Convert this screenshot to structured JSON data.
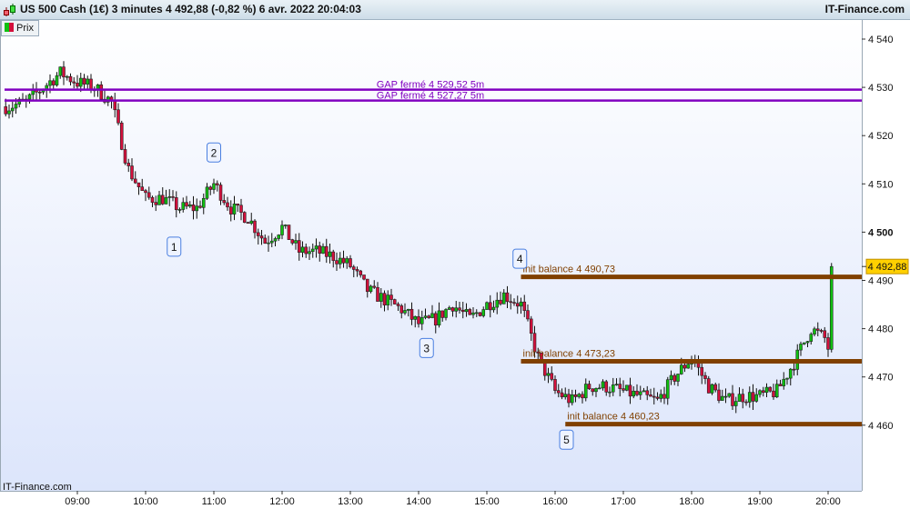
{
  "header": {
    "title": "US 500 Cash (1€) 3 minutes 4 492,88 (-0,82 %) 6 avr. 2022 20:04:03",
    "brand": "IT-Finance.com",
    "series_button": "Prix",
    "logo_icon": "candlestick-icon"
  },
  "footer": {
    "watermark": "IT-Finance.com"
  },
  "colors": {
    "up": "#10c010",
    "down": "#d4103c",
    "gap_line": "#8000c0",
    "balance_line": "#804000",
    "price_tag": "#ffd000",
    "bg_top": "#ffffff",
    "bg_bottom": "#dce5fb"
  },
  "chart_data": {
    "type": "candlestick",
    "interval": "3 minutes",
    "ylim": [
      4450,
      4544
    ],
    "yticks": [
      {
        "v": 4540,
        "label": "4 540"
      },
      {
        "v": 4530,
        "label": "4 530"
      },
      {
        "v": 4520,
        "label": "4 520"
      },
      {
        "v": 4510,
        "label": "4 510"
      },
      {
        "v": 4500,
        "label": "4 500",
        "bold": true
      },
      {
        "v": 4490,
        "label": "4 490"
      },
      {
        "v": 4480,
        "label": "4 480"
      },
      {
        "v": 4470,
        "label": "4 470"
      },
      {
        "v": 4460,
        "label": "4 460"
      }
    ],
    "xticks": [
      "09:00",
      "10:00",
      "11:00",
      "12:00",
      "13:00",
      "14:00",
      "15:00",
      "16:00",
      "17:00",
      "18:00",
      "19:00",
      "20:00"
    ],
    "xrange": [
      "07:56",
      "20:30"
    ],
    "close_path": {
      "times": [
        "08:00",
        "08:15",
        "08:30",
        "08:45",
        "09:00",
        "09:15",
        "09:30",
        "09:45",
        "10:00",
        "10:15",
        "10:30",
        "10:45",
        "11:00",
        "11:15",
        "11:30",
        "11:45",
        "12:00",
        "12:15",
        "12:30",
        "12:45",
        "13:00",
        "13:15",
        "13:30",
        "13:45",
        "14:00",
        "14:15",
        "14:30",
        "14:45",
        "15:00",
        "15:15",
        "15:30",
        "15:45",
        "16:00",
        "16:15",
        "16:30",
        "16:45",
        "17:00",
        "17:15",
        "17:30",
        "17:45",
        "18:00",
        "18:15",
        "18:30",
        "18:45",
        "19:00",
        "19:15",
        "19:30",
        "19:45",
        "19:57",
        "20:00",
        "20:03"
      ],
      "values": [
        4526,
        4527,
        4530,
        4533,
        4531,
        4530,
        4527,
        4513,
        4507,
        4507,
        4505,
        4505,
        4510,
        4505,
        4503,
        4498,
        4501,
        4496,
        4496,
        4495,
        4493,
        4488,
        4486,
        4484,
        4481,
        4482,
        4485,
        4482,
        4485,
        4487,
        4485,
        4474,
        4467,
        4465,
        4468,
        4468,
        4467,
        4466,
        4465,
        4470,
        4474,
        4468,
        4465,
        4466,
        4466,
        4467,
        4473,
        4480,
        4478,
        4476,
        4492.88
      ]
    },
    "last_price": {
      "value": 4492.88,
      "label": "4 492,88"
    },
    "hlines": [
      {
        "value": 4529.52,
        "label": "GAP fermé 4 529,52 5m",
        "kind": "gap",
        "from": "07:56"
      },
      {
        "value": 4527.27,
        "label": "GAP fermé 4 527,27 5m",
        "kind": "gap",
        "from": "07:56"
      },
      {
        "value": 4490.73,
        "label": "init balance 4 490,73",
        "kind": "balance",
        "from": "15:30"
      },
      {
        "value": 4473.23,
        "label": "init balance 4 473,23",
        "kind": "balance",
        "from": "15:30"
      },
      {
        "value": 4460.23,
        "label": "init balance 4 460,23",
        "kind": "balance",
        "from": "16:09"
      }
    ],
    "markers": [
      {
        "label": "1",
        "time": "10:25",
        "value": 4497
      },
      {
        "label": "2",
        "time": "11:00",
        "value": 4516.5
      },
      {
        "label": "3",
        "time": "14:07",
        "value": 4476
      },
      {
        "label": "4",
        "time": "15:29",
        "value": 4494.5
      },
      {
        "label": "5",
        "time": "16:10",
        "value": 4457
      }
    ]
  }
}
